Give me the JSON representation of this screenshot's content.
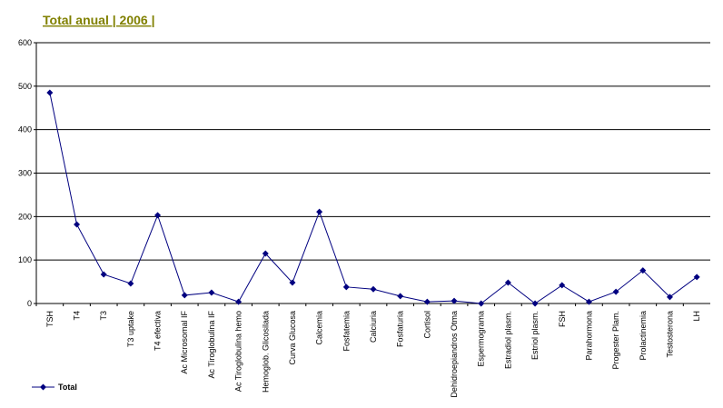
{
  "chart_data": {
    "type": "line",
    "title": "Total anual | 2006 |",
    "categories": [
      "TSH",
      "T4",
      "T3",
      "T3 uptake",
      "T4 efectiva",
      "Ac Microsomal IF",
      "Ac Tiroglobulina IF",
      "Ac Tiroglobulina hemo",
      "Hemoglob. Glicosilada",
      "Curva Glucosa",
      "Calcemia",
      "Fosfatemia",
      "Calciuria",
      "Fosfaturia",
      "Cortisol",
      "Dehidroepiandros Otma",
      "Espermograma",
      "Estradiol plasm.",
      "Estriol plasm.",
      "FSH",
      "Parahormona",
      "Progester Plam.",
      "Prolactinemia",
      "Testosterona",
      "LH"
    ],
    "series": [
      {
        "name": "Total",
        "color": "#000080",
        "values": [
          485,
          182,
          67,
          46,
          203,
          19,
          25,
          4,
          115,
          48,
          211,
          38,
          33,
          17,
          4,
          6,
          0,
          48,
          0,
          42,
          4,
          27,
          76,
          15,
          61
        ]
      }
    ],
    "ylim": [
      0,
      600
    ],
    "yticks": [
      0,
      100,
      200,
      300,
      400,
      500,
      600
    ],
    "grid": true,
    "legend": "bottom-left"
  }
}
